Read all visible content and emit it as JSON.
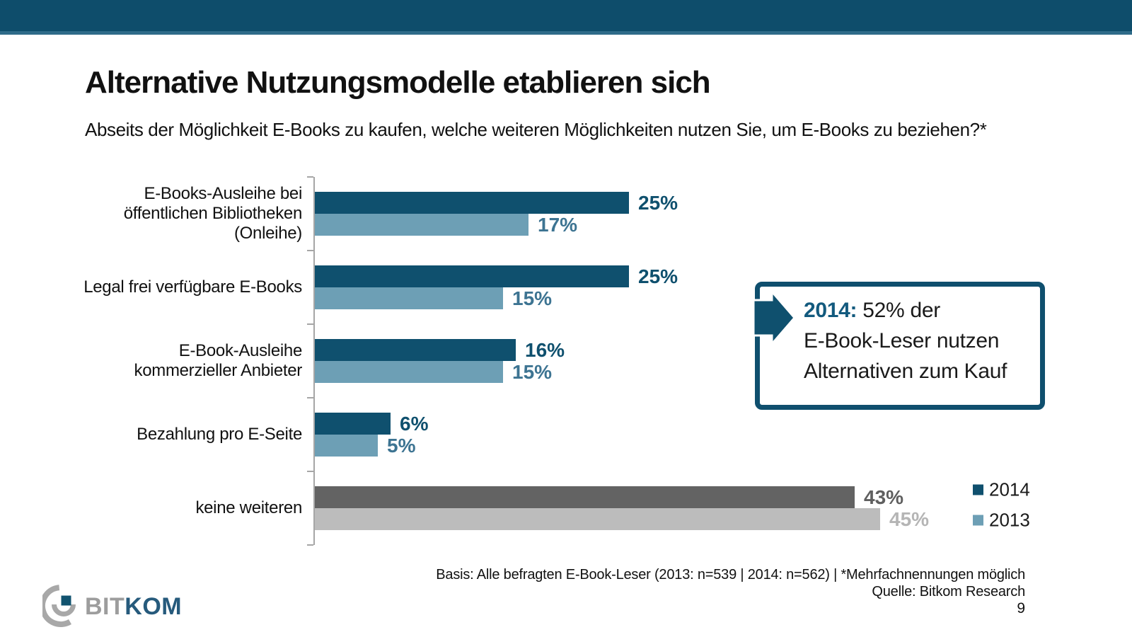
{
  "slide": {
    "title": "Alternative Nutzungsmodelle etablieren sich",
    "subtitle": "Abseits der Möglichkeit E-Books zu kaufen, welche weiteren Möglichkeiten nutzen Sie, um E-Books zu beziehen?*",
    "page_number": "9"
  },
  "chart_data": {
    "type": "bar",
    "orientation": "horizontal",
    "title": "",
    "categories": [
      "E-Books-Ausleihe bei\nöffentlichen Bibliotheken\n(Onleihe)",
      "Legal frei verfügbare E-Books",
      "E-Book-Ausleihe\nkommerzieller Anbieter",
      "Bezahlung pro E-Seite",
      "keine weiteren"
    ],
    "series": [
      {
        "name": "2014",
        "values": [
          25,
          25,
          16,
          6,
          43
        ],
        "bar_colors": [
          "#0f506e",
          "#0f506e",
          "#0f506e",
          "#0f506e",
          "#636363"
        ],
        "label_colors": [
          "#0f506e",
          "#0f506e",
          "#0f506e",
          "#0f506e",
          "#5f5f5f"
        ]
      },
      {
        "name": "2013",
        "values": [
          17,
          15,
          15,
          5,
          45
        ],
        "bar_colors": [
          "#6d9fb5",
          "#6d9fb5",
          "#6d9fb5",
          "#6d9fb5",
          "#bcbcbc"
        ],
        "label_colors": [
          "#3d7492",
          "#3d7492",
          "#3d7492",
          "#3d7492",
          "#b5b5b5"
        ]
      }
    ],
    "value_suffix": "%",
    "xlim": [
      0,
      45
    ],
    "grid": false,
    "legend_position": "right-bottom",
    "legend": [
      {
        "label": "2014",
        "color": "#0f506e"
      },
      {
        "label": "2013",
        "color": "#6d9fb5"
      }
    ]
  },
  "callout": {
    "year_label": "2014:",
    "line1_rest": " 52% der",
    "line2": "E-Book-Leser nutzen",
    "line3": "Alternativen zum Kauf",
    "accent_color": "#0f506e"
  },
  "footer": {
    "basis": "Basis: Alle befragten E-Book-Leser (2013: n=539 | 2014: n=562) | *Mehrfachnennungen möglich",
    "source": "Quelle: Bitkom Research"
  },
  "logo": {
    "text_gray": "BIT",
    "text_blue": "KOM"
  },
  "colors": {
    "header_bar": "#0e4d6b",
    "header_line": "#2f6b89",
    "axis": "#a6a6a6"
  }
}
